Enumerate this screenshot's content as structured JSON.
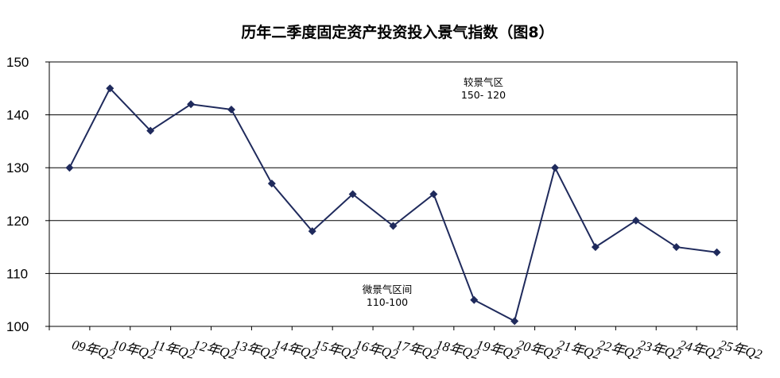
{
  "chart_data": {
    "type": "line",
    "title": "历年二季度固定资产投资投入景气指数（图8）",
    "xlabel": "",
    "ylabel": "",
    "categories": [
      "09年Q2",
      "10年Q2",
      "11年Q2",
      "12年Q2",
      "13年Q2",
      "14年Q2",
      "15年Q2",
      "16年Q2",
      "17年Q2",
      "18年Q2",
      "19年Q2",
      "20年Q2",
      "21年Q2",
      "22年Q2",
      "23年Q2",
      "24年Q2",
      "25年Q2"
    ],
    "values": [
      130,
      145,
      137,
      142,
      141,
      127,
      118,
      125,
      119,
      125,
      105,
      101,
      130,
      115,
      120,
      115,
      114
    ],
    "ylim": [
      100,
      150
    ],
    "yticks": [
      "100",
      "110",
      "120",
      "130",
      "140",
      "150"
    ],
    "grid": true,
    "line_color": "#1f2a5c",
    "annotations": [
      {
        "line1": "较景气区",
        "line2": "150- 120"
      },
      {
        "line1": "微景气区间",
        "line2": "110-100"
      }
    ]
  }
}
